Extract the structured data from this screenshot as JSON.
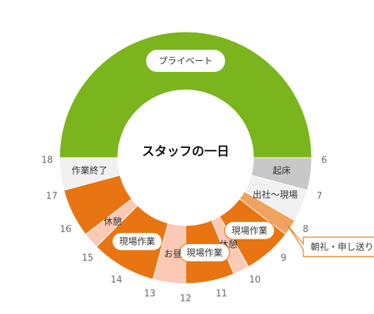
{
  "chart_data": {
    "type": "donut",
    "title": "スタッフの一日",
    "segments": [
      {
        "label": "プライベート",
        "start": 18,
        "end": 6,
        "color": "#7ab51d",
        "style": "pill"
      },
      {
        "label": "起床",
        "start": 6,
        "end": 7,
        "color": "#c8c8c8",
        "style": "text"
      },
      {
        "label": "出社〜現場",
        "start": 7,
        "end": 8,
        "color": "#f1f1f1",
        "style": "text"
      },
      {
        "label": "朝礼・申し送り",
        "start": 8,
        "end": 8.5,
        "color": "#f0a35e",
        "style": "callout"
      },
      {
        "label": "現場作業",
        "start": 8.5,
        "end": 10,
        "color": "#e87511",
        "style": "box"
      },
      {
        "label": "休憩",
        "start": 10,
        "end": 10.5,
        "color": "#fcc9b5",
        "style": "text"
      },
      {
        "label": "現場作業",
        "start": 10.5,
        "end": 12,
        "color": "#e87511",
        "style": "box"
      },
      {
        "label": "お昼",
        "start": 12,
        "end": 13,
        "color": "#fcc9b5",
        "style": "text"
      },
      {
        "label": "現場作業",
        "start": 13,
        "end": 15,
        "color": "#e87511",
        "style": "box"
      },
      {
        "label": "休憩",
        "start": 15,
        "end": 15.5,
        "color": "#fcc9b5",
        "style": "text"
      },
      {
        "label": null,
        "start": 15.5,
        "end": 17,
        "color": "#e87511",
        "style": "text"
      },
      {
        "label": "作業終了",
        "start": 17,
        "end": 18,
        "color": "#f1f1f1",
        "style": "text"
      }
    ],
    "xlim": [
      0,
      24
    ],
    "xticks": [
      6,
      7,
      8,
      9,
      10,
      11,
      12,
      13,
      14,
      15,
      16,
      17,
      18
    ]
  }
}
